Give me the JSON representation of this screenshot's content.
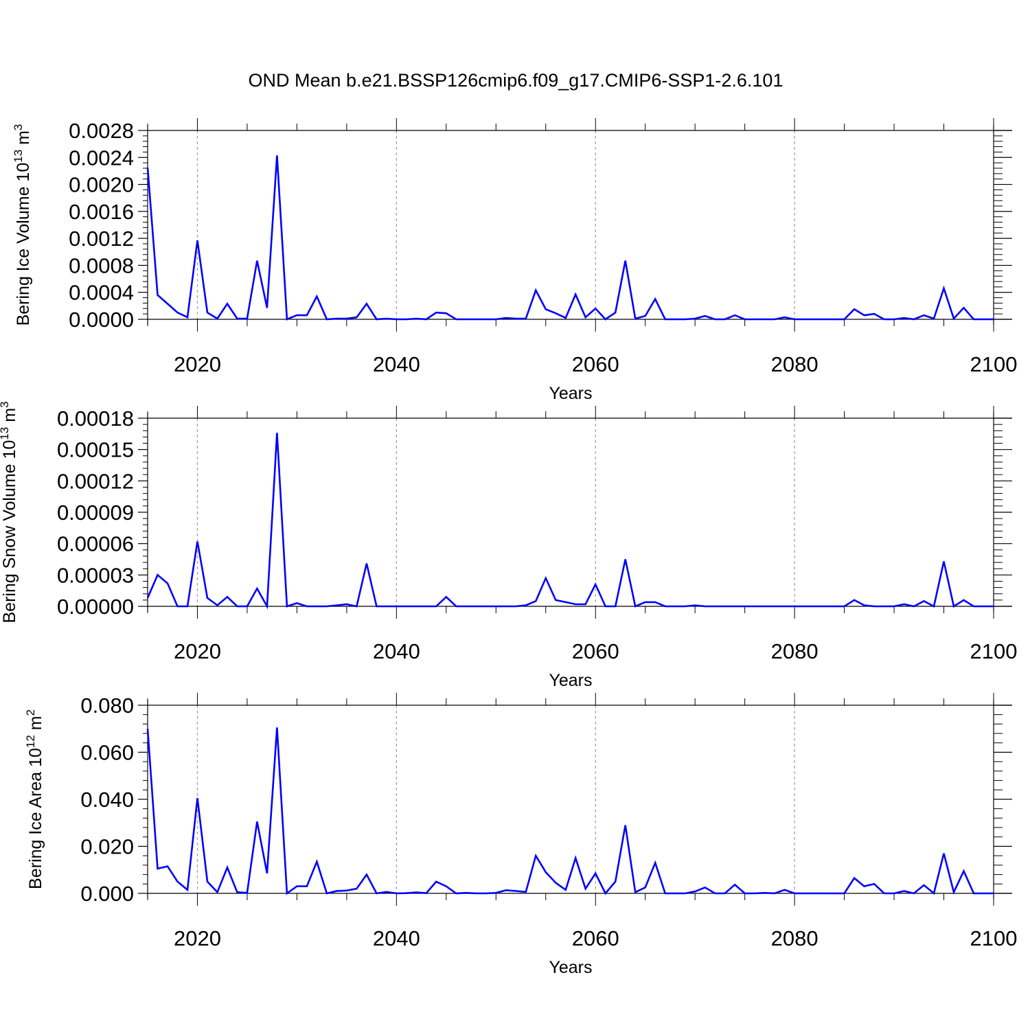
{
  "title": "OND Mean b.e21.BSSP126cmip6.f09_g17.CMIP6-SSP1-2.6.101",
  "chart_data": [
    {
      "type": "line",
      "title": "OND Mean b.e21.BSSP126cmip6.f09_g17.CMIP6-SSP1-2.6.101",
      "xlabel": "Years",
      "ylabel": "Bering Ice Volume 10",
      "ylabel_exp": "13",
      "ylabel_unit": " m",
      "ylabel_unit_exp": "3",
      "xlim": [
        2015,
        2100
      ],
      "ylim": [
        0,
        0.0028
      ],
      "yticks": [
        "0.0000",
        "0.0004",
        "0.0008",
        "0.0012",
        "0.0016",
        "0.0020",
        "0.0024",
        "0.0028"
      ],
      "xticks": [
        "2020",
        "2040",
        "2060",
        "2080",
        "2100"
      ],
      "grid": "vertical dashed at major x ticks",
      "series_color": "#0000ff",
      "x": [
        2015,
        2016,
        2017,
        2018,
        2019,
        2020,
        2021,
        2022,
        2023,
        2024,
        2025,
        2026,
        2027,
        2028,
        2029,
        2030,
        2031,
        2032,
        2033,
        2034,
        2035,
        2036,
        2037,
        2038,
        2039,
        2040,
        2041,
        2042,
        2043,
        2044,
        2045,
        2046,
        2047,
        2048,
        2049,
        2050,
        2051,
        2052,
        2053,
        2054,
        2055,
        2056,
        2057,
        2058,
        2059,
        2060,
        2061,
        2062,
        2063,
        2064,
        2065,
        2066,
        2067,
        2068,
        2069,
        2070,
        2071,
        2072,
        2073,
        2074,
        2075,
        2076,
        2077,
        2078,
        2079,
        2080,
        2081,
        2082,
        2083,
        2084,
        2085,
        2086,
        2087,
        2088,
        2089,
        2090,
        2091,
        2092,
        2093,
        2094,
        2095,
        2096,
        2097,
        2098,
        2099,
        2100
      ],
      "y": [
        0.00225,
        0.00036,
        0.00023,
        0.0001,
        3e-05,
        0.00117,
        0.0001,
        1e-05,
        0.00023,
        1e-05,
        1e-05,
        0.00087,
        0.00017,
        0.00243,
        0.0,
        6e-05,
        6e-05,
        0.00034,
        0.0,
        1e-05,
        1e-05,
        3e-05,
        0.00023,
        0.0,
        1e-05,
        0.0,
        0.0,
        1e-05,
        0.0,
        0.0001,
        9e-05,
        0.0,
        0.0,
        0.0,
        0.0,
        0.0,
        2e-05,
        1e-05,
        1e-05,
        0.00043,
        0.00015,
        9e-05,
        2e-05,
        0.00037,
        3e-05,
        0.00016,
        0.0,
        0.0001,
        0.00087,
        1e-05,
        5e-05,
        0.0003,
        0.0,
        0.0,
        0.0,
        1e-05,
        5e-05,
        0.0,
        0.0,
        6e-05,
        0.0,
        0.0,
        0.0,
        0.0,
        3e-05,
        0.0,
        0.0,
        0.0,
        0.0,
        0.0,
        0.0,
        0.00015,
        6e-05,
        8e-05,
        0.0,
        0.0,
        2e-05,
        0.0,
        6e-05,
        1e-05,
        0.00046,
        1e-05,
        0.00017,
        0.0,
        0.0,
        0.0
      ]
    },
    {
      "type": "line",
      "xlabel": "Years",
      "ylabel": "Bering Snow Volume 10",
      "ylabel_exp": "13",
      "ylabel_unit": " m",
      "ylabel_unit_exp": "3",
      "xlim": [
        2015,
        2100
      ],
      "ylim": [
        0,
        0.00018
      ],
      "yticks": [
        "0.00000",
        "0.00003",
        "0.00006",
        "0.00009",
        "0.00012",
        "0.00015",
        "0.00018"
      ],
      "xticks": [
        "2020",
        "2040",
        "2060",
        "2080",
        "2100"
      ],
      "grid": "vertical dashed at major x ticks",
      "series_color": "#0000ff",
      "x": [
        2015,
        2016,
        2017,
        2018,
        2019,
        2020,
        2021,
        2022,
        2023,
        2024,
        2025,
        2026,
        2027,
        2028,
        2029,
        2030,
        2031,
        2032,
        2033,
        2034,
        2035,
        2036,
        2037,
        2038,
        2039,
        2040,
        2041,
        2042,
        2043,
        2044,
        2045,
        2046,
        2047,
        2048,
        2049,
        2050,
        2051,
        2052,
        2053,
        2054,
        2055,
        2056,
        2057,
        2058,
        2059,
        2060,
        2061,
        2062,
        2063,
        2064,
        2065,
        2066,
        2067,
        2068,
        2069,
        2070,
        2071,
        2072,
        2073,
        2074,
        2075,
        2076,
        2077,
        2078,
        2079,
        2080,
        2081,
        2082,
        2083,
        2084,
        2085,
        2086,
        2087,
        2088,
        2089,
        2090,
        2091,
        2092,
        2093,
        2094,
        2095,
        2096,
        2097,
        2098,
        2099,
        2100
      ],
      "y": [
        8e-06,
        3e-05,
        2.2e-05,
        0.0,
        0.0,
        6.2e-05,
        8e-06,
        1e-06,
        9e-06,
        0.0,
        0.0,
        1.7e-05,
        0.0,
        0.000166,
        0.0,
        3e-06,
        0.0,
        0.0,
        0.0,
        1e-06,
        2e-06,
        0.0,
        4.1e-05,
        0.0,
        0.0,
        0.0,
        0.0,
        0.0,
        0.0,
        0.0,
        9e-06,
        0.0,
        0.0,
        0.0,
        0.0,
        0.0,
        0.0,
        0.0,
        1e-06,
        5e-06,
        2.7e-05,
        6e-06,
        4e-06,
        2e-06,
        2e-06,
        2.1e-05,
        0.0,
        0.0,
        4.5e-05,
        0.0,
        4e-06,
        4e-06,
        0.0,
        0.0,
        0.0,
        1e-06,
        0.0,
        0.0,
        0.0,
        0.0,
        0.0,
        0.0,
        0.0,
        0.0,
        0.0,
        0.0,
        0.0,
        0.0,
        0.0,
        0.0,
        0.0,
        6e-06,
        1e-06,
        0.0,
        0.0,
        0.0,
        2e-06,
        0.0,
        5e-06,
        0.0,
        4.3e-05,
        0.0,
        6e-06,
        0.0,
        0.0,
        0.0
      ]
    },
    {
      "type": "line",
      "xlabel": "Years",
      "ylabel": "Bering Ice Area 10",
      "ylabel_exp": "12",
      "ylabel_unit": " m",
      "ylabel_unit_exp": "2",
      "xlim": [
        2015,
        2100
      ],
      "ylim": [
        0,
        0.08
      ],
      "yticks": [
        "0.000",
        "0.020",
        "0.040",
        "0.060",
        "0.080"
      ],
      "xticks": [
        "2020",
        "2040",
        "2060",
        "2080",
        "2100"
      ],
      "grid": "vertical dashed at major x ticks",
      "series_color": "#0000ff",
      "x": [
        2015,
        2016,
        2017,
        2018,
        2019,
        2020,
        2021,
        2022,
        2023,
        2024,
        2025,
        2026,
        2027,
        2028,
        2029,
        2030,
        2031,
        2032,
        2033,
        2034,
        2035,
        2036,
        2037,
        2038,
        2039,
        2040,
        2041,
        2042,
        2043,
        2044,
        2045,
        2046,
        2047,
        2048,
        2049,
        2050,
        2051,
        2052,
        2053,
        2054,
        2055,
        2056,
        2057,
        2058,
        2059,
        2060,
        2061,
        2062,
        2063,
        2064,
        2065,
        2066,
        2067,
        2068,
        2069,
        2070,
        2071,
        2072,
        2073,
        2074,
        2075,
        2076,
        2077,
        2078,
        2079,
        2080,
        2081,
        2082,
        2083,
        2084,
        2085,
        2086,
        2087,
        2088,
        2089,
        2090,
        2091,
        2092,
        2093,
        2094,
        2095,
        2096,
        2097,
        2098,
        2099,
        2100
      ],
      "y": [
        0.07,
        0.0105,
        0.0115,
        0.005,
        0.0015,
        0.0405,
        0.005,
        0.0005,
        0.011,
        0.0005,
        0.0002,
        0.0305,
        0.0085,
        0.0705,
        0.0,
        0.003,
        0.003,
        0.0135,
        0.0,
        0.001,
        0.0012,
        0.002,
        0.008,
        0.0,
        0.0006,
        0.0,
        0.0001,
        0.0004,
        0.0001,
        0.005,
        0.003,
        0.0,
        0.0002,
        0.0,
        0.0,
        0.0002,
        0.0013,
        0.001,
        0.0006,
        0.016,
        0.009,
        0.0045,
        0.0015,
        0.015,
        0.002,
        0.0085,
        0.0,
        0.005,
        0.029,
        0.0005,
        0.0025,
        0.013,
        0.0,
        0.0,
        0.0,
        0.0008,
        0.0025,
        0.0,
        0.0,
        0.0037,
        0.0,
        0.0,
        0.0002,
        0.0,
        0.0015,
        0.0,
        0.0,
        0.0,
        0.0,
        0.0,
        0.0,
        0.0065,
        0.003,
        0.004,
        0.0,
        0.0,
        0.001,
        0.0,
        0.0035,
        0.0,
        0.017,
        0.0005,
        0.0095,
        0.0,
        0.0,
        0.0
      ]
    }
  ]
}
